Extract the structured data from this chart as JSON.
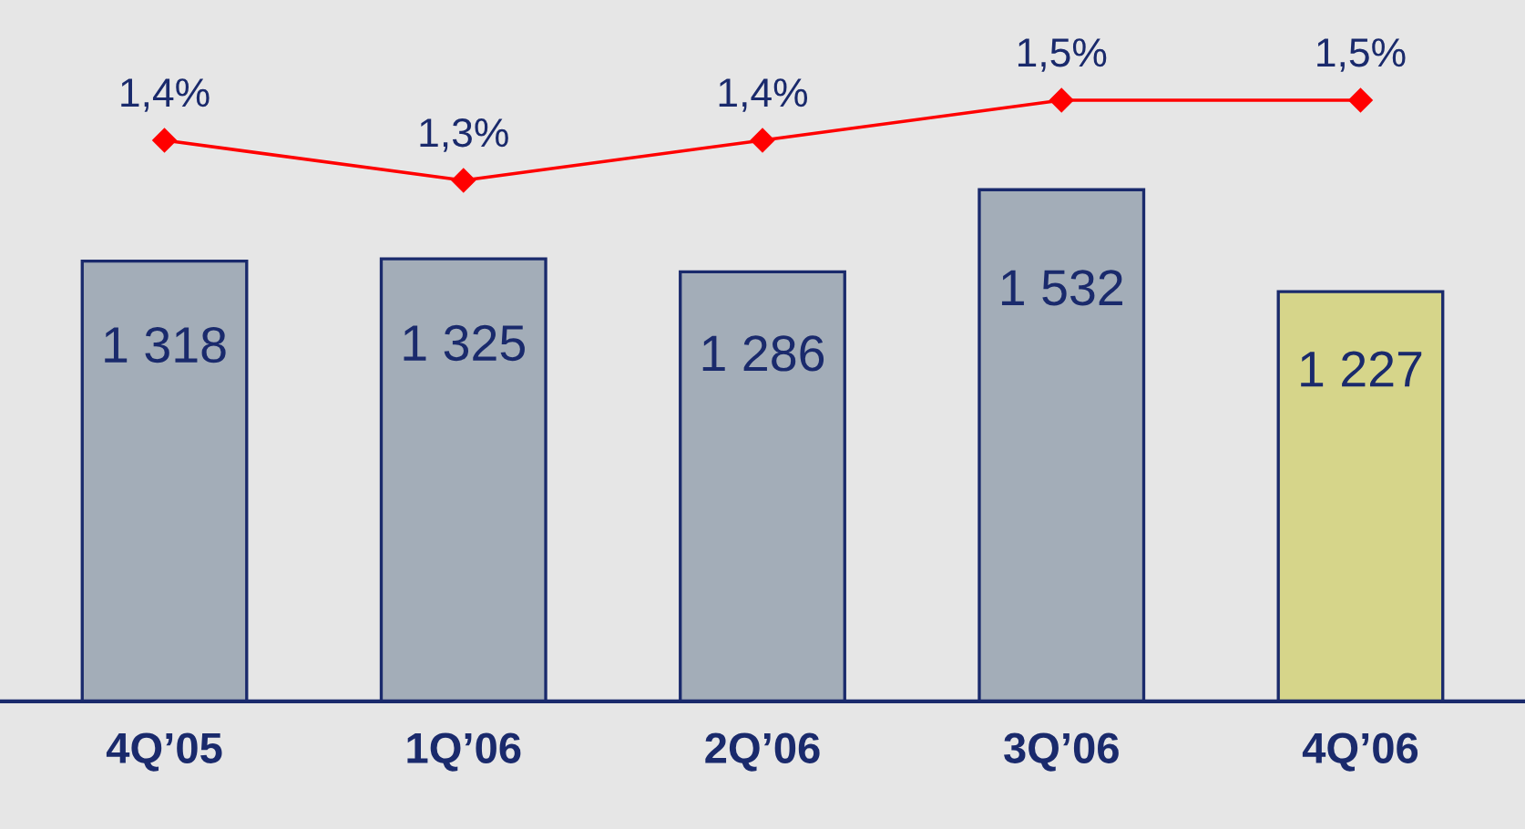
{
  "chart_data": {
    "type": "bar",
    "categories": [
      "4Q’05",
      "1Q’06",
      "2Q’06",
      "3Q’06",
      "4Q’06"
    ],
    "series": [
      {
        "values": [
          1318,
          1325,
          1286,
          1532,
          1227
        ],
        "colors": [
          "#a3adb8",
          "#a3adb8",
          "#a3adb8",
          "#a3adb8",
          "#d6d58a"
        ],
        "value_labels": [
          "1 318",
          "1 325",
          "1 286",
          "1 532",
          "1 227"
        ]
      },
      {
        "type": "line",
        "axis": "y2",
        "color": "#ff0000",
        "values": [
          1.4,
          1.3,
          1.4,
          1.5,
          1.5
        ],
        "value_labels": [
          "1,4%",
          "1,3%",
          "1,4%",
          "1,5%",
          "1,5%"
        ]
      }
    ],
    "ylim": [
      0,
      2100
    ],
    "y2lim": [
      0,
      1.75
    ],
    "tick_labels": "x",
    "marker": "diamond",
    "line_style": "solid",
    "grid": false,
    "legend": false
  }
}
